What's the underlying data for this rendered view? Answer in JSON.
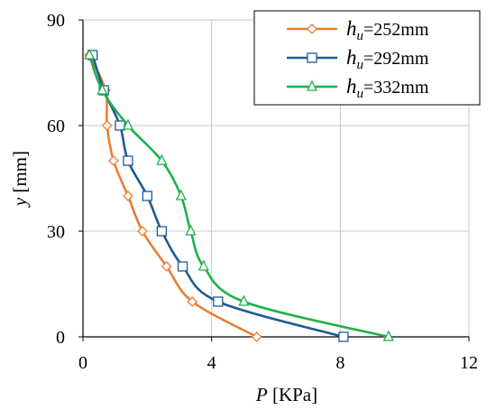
{
  "chart_data": {
    "type": "line",
    "xlabel": {
      "var": "P",
      "unit": "[KPa]"
    },
    "ylabel": {
      "var": "y",
      "unit": "[mm]"
    },
    "xlim": [
      0,
      12
    ],
    "ylim": [
      0,
      90
    ],
    "xticks": [
      0,
      4,
      8,
      12
    ],
    "yticks": [
      0,
      30,
      60,
      90
    ],
    "grid": true,
    "legend_position": "top-right",
    "series": [
      {
        "label_var": "h",
        "label_sub": "u",
        "label_value": "=252mm",
        "color": "#ED7D31",
        "marker": "diamond",
        "points": [
          [
            0.2,
            80
          ],
          [
            0.7,
            70
          ],
          [
            0.75,
            60
          ],
          [
            0.95,
            50
          ],
          [
            1.4,
            40
          ],
          [
            1.85,
            30
          ],
          [
            2.6,
            20
          ],
          [
            3.4,
            10
          ],
          [
            5.4,
            0
          ]
        ]
      },
      {
        "label_var": "h",
        "label_sub": "u",
        "label_value": "=292mm",
        "color": "#1F5B93",
        "marker": "square",
        "points": [
          [
            0.3,
            80
          ],
          [
            0.65,
            70
          ],
          [
            1.15,
            60
          ],
          [
            1.4,
            50
          ],
          [
            2.0,
            40
          ],
          [
            2.45,
            30
          ],
          [
            3.1,
            20
          ],
          [
            4.2,
            10
          ],
          [
            8.1,
            0
          ]
        ]
      },
      {
        "label_var": "h",
        "label_sub": "u",
        "label_value": "=332mm",
        "color": "#1DB14B",
        "marker": "triangle",
        "points": [
          [
            0.2,
            80
          ],
          [
            0.6,
            70
          ],
          [
            1.4,
            60
          ],
          [
            2.45,
            50
          ],
          [
            3.05,
            40
          ],
          [
            3.35,
            30
          ],
          [
            3.75,
            20
          ],
          [
            5.0,
            10
          ],
          [
            9.5,
            0
          ]
        ]
      }
    ]
  }
}
